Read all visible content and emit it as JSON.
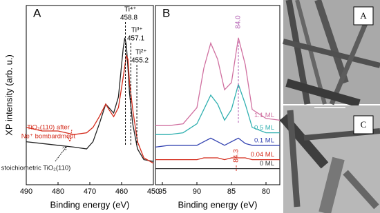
{
  "chart_data": [
    {
      "type": "line",
      "panel_label": "A",
      "xlabel": "Binding energy (eV)",
      "ylabel": "XP intensity (arb. u.)",
      "xlim": [
        490,
        450
      ],
      "xticks": [
        490,
        480,
        470,
        460,
        450
      ],
      "ylim": [
        0,
        100
      ],
      "x": [
        490,
        485,
        480,
        475,
        471,
        469,
        467,
        465,
        464,
        462.5,
        461,
        459.5,
        459,
        458.5,
        458,
        457.5,
        456.5,
        455,
        453,
        450
      ],
      "series": [
        {
          "color": "#222222",
          "values": [
            24,
            23,
            22,
            21,
            20,
            24,
            34,
            45,
            43,
            40,
            49,
            76,
            82,
            78,
            65,
            51,
            34,
            20,
            14,
            13
          ]
        },
        {
          "color": "#d42a1a",
          "values": [
            32,
            30,
            30,
            28,
            29,
            32,
            38,
            45,
            42,
            38,
            43,
            60,
            66,
            72,
            70,
            57,
            42,
            24,
            15,
            12
          ]
        }
      ],
      "peaks": [
        {
          "label": "Ti⁴⁺",
          "value": 458.8
        },
        {
          "label": "Ti³⁺",
          "value": 457.1
        },
        {
          "label": "Ti²⁺",
          "value": 455.2
        }
      ],
      "annotations": [
        {
          "text": "TiO₂(110) after",
          "color": "#d42a1a"
        },
        {
          "text": "Ne⁺ bombardment",
          "color": "#d42a1a"
        },
        {
          "text": "stoichiometric TiO₂(110)",
          "color": "#222222"
        }
      ]
    },
    {
      "type": "line",
      "panel_label": "B",
      "xlabel": "Binding energy (eV)",
      "xlim": [
        96,
        78
      ],
      "xticks": [
        95,
        90,
        85,
        80
      ],
      "ylim": [
        0,
        100
      ],
      "x": [
        96,
        94,
        92,
        90,
        89,
        88,
        87,
        86,
        85,
        84,
        83,
        82,
        80,
        78
      ],
      "series": [
        {
          "name": "0 ML",
          "color": "#333333",
          "values": [
            9,
            9,
            9,
            9,
            9,
            9,
            9,
            9,
            9,
            9,
            9,
            9,
            9,
            9
          ]
        },
        {
          "name": "0.04 ML",
          "color": "#d42a1a",
          "values": [
            14,
            14,
            14,
            14,
            15,
            15,
            15,
            14,
            15,
            15,
            15,
            14,
            14,
            14
          ]
        },
        {
          "name": "0.1 ML",
          "color": "#3040b0",
          "values": [
            21,
            22,
            22,
            22,
            24,
            26,
            24,
            22,
            24,
            26,
            23,
            22,
            22,
            22
          ]
        },
        {
          "name": "0.5 ML",
          "color": "#30b0b0",
          "values": [
            28,
            28,
            29,
            34,
            42,
            50,
            45,
            36,
            42,
            56,
            45,
            32,
            29,
            29
          ]
        },
        {
          "name": "1.1 ML",
          "color": "#d070a0",
          "values": [
            33,
            33,
            34,
            43,
            65,
            79,
            70,
            53,
            57,
            82,
            67,
            42,
            37,
            36
          ]
        }
      ],
      "markers": [
        {
          "value": {
            "value": 84,
            "label": "84.0"
          },
          "color": "#b05cb0"
        },
        {
          "value": 84.3,
          "color": "#d42a1a"
        }
      ]
    }
  ],
  "images": [
    {
      "label": "A"
    },
    {
      "label": "C"
    }
  ]
}
